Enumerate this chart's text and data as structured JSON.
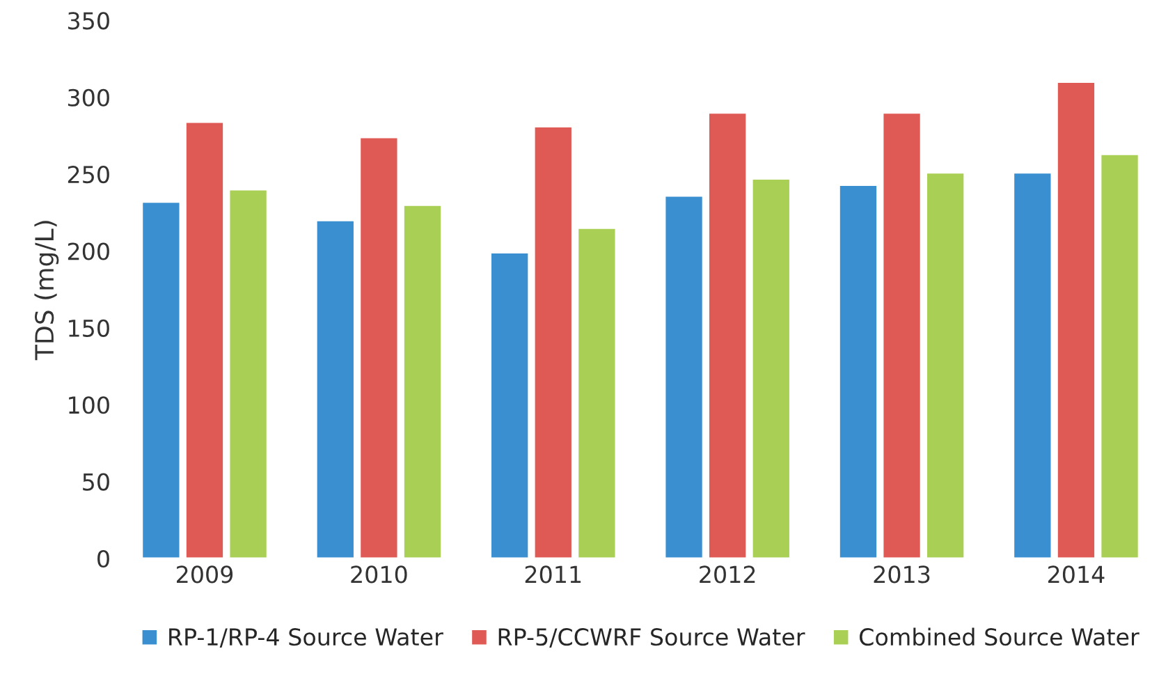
{
  "chart_data": {
    "type": "bar",
    "ylabel": "TDS (mg/L)",
    "categories": [
      "2009",
      "2010",
      "2011",
      "2012",
      "2013",
      "2014"
    ],
    "series": [
      {
        "name": "RP-1/RP-4 Source Water",
        "color": "#3a8fd0",
        "values": [
          232,
          220,
          199,
          236,
          243,
          251
        ]
      },
      {
        "name": "RP-5/CCWRF Source Water",
        "color": "#e05a55",
        "values": [
          284,
          274,
          281,
          290,
          290,
          310
        ]
      },
      {
        "name": "Combined Source Water",
        "color": "#a9cf55",
        "values": [
          240,
          230,
          215,
          247,
          251,
          263
        ]
      }
    ],
    "ylim": [
      0,
      350
    ],
    "yticks": [
      0,
      50,
      100,
      150,
      200,
      250,
      300,
      350
    ],
    "grid": false,
    "legend": "bottom"
  }
}
